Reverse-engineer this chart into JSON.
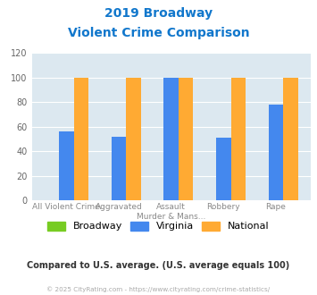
{
  "title_line1": "2019 Broadway",
  "title_line2": "Violent Crime Comparison",
  "categories": [
    "All Violent Crime",
    "Aggravated Assault",
    "Murder & Mans...",
    "Robbery",
    "Rape"
  ],
  "broadway_values": [
    0,
    0,
    0,
    0,
    0
  ],
  "virginia_values": [
    56,
    52,
    100,
    51,
    78
  ],
  "national_values": [
    100,
    100,
    100,
    100,
    100
  ],
  "broadway_color": "#77cc22",
  "virginia_color": "#4488ee",
  "national_color": "#ffaa33",
  "plot_bg": "#dce8f0",
  "ylim": [
    0,
    120
  ],
  "yticks": [
    0,
    20,
    40,
    60,
    80,
    100,
    120
  ],
  "footnote": "Compared to U.S. average. (U.S. average equals 100)",
  "copyright": "© 2025 CityRating.com - https://www.cityrating.com/crime-statistics/",
  "title_color": "#1177cc",
  "footnote_color": "#333333",
  "copyright_color": "#aaaaaa",
  "xtick_top": [
    "Aggravated",
    "Assault",
    "Murder & Mans...",
    "Robbery",
    "Rape"
  ],
  "xtick_bottom": [
    "All Violent Crime",
    "",
    "",
    "",
    ""
  ]
}
